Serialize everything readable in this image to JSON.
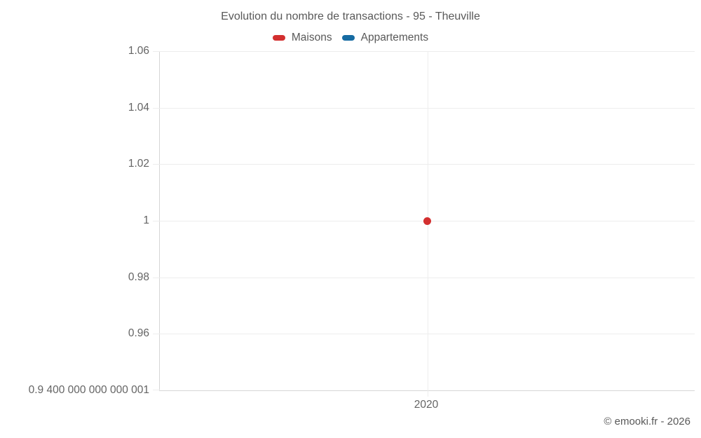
{
  "attribution": "© emooki.fr - 2026",
  "chart_data": {
    "type": "scatter",
    "title": "Evolution du nombre de transactions - 95 - Theuville",
    "xlabel": "",
    "ylabel": "",
    "x_categories": [
      "2020"
    ],
    "ylim": [
      0.9400000000000001,
      1.06
    ],
    "grid": true,
    "legend_position": "top",
    "series": [
      {
        "name": "Maisons",
        "color": "#d32f2f",
        "points": [
          {
            "x": "2020",
            "y": 1
          }
        ]
      },
      {
        "name": "Appartements",
        "color": "#166ba2",
        "points": []
      }
    ],
    "y_ticks": [
      {
        "value": 1.06,
        "label": "1.06"
      },
      {
        "value": 1.04,
        "label": "1.04"
      },
      {
        "value": 1.02,
        "label": "1.02"
      },
      {
        "value": 1.0,
        "label": "1"
      },
      {
        "value": 0.98,
        "label": "0.98"
      },
      {
        "value": 0.96,
        "label": "0.96"
      },
      {
        "value": 0.9400000000000001,
        "label": "0.9 400 000 000 000 001"
      }
    ]
  }
}
